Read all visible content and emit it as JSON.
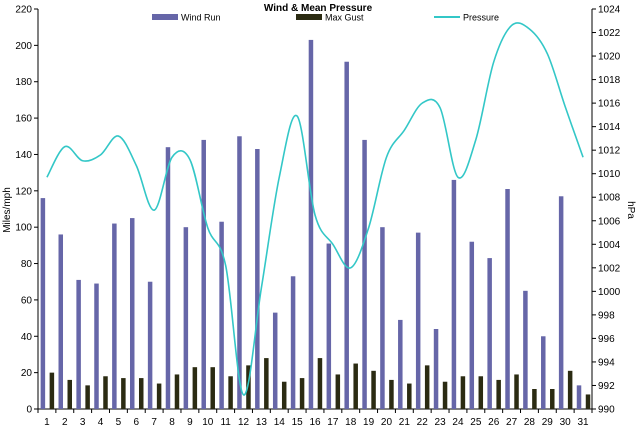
{
  "chart_data": {
    "type": "bar-line",
    "title": "Wind & Mean Pressure",
    "ylabel_left": "Miles/mph",
    "ylabel_right": "hPa",
    "categories": [
      "1",
      "2",
      "3",
      "4",
      "5",
      "6",
      "7",
      "8",
      "9",
      "10",
      "11",
      "12",
      "13",
      "14",
      "15",
      "16",
      "17",
      "18",
      "19",
      "20",
      "21",
      "22",
      "23",
      "24",
      "25",
      "26",
      "27",
      "28",
      "29",
      "30",
      "31"
    ],
    "ylim_left": [
      0,
      220
    ],
    "yticks_left": [
      0,
      20,
      40,
      60,
      80,
      100,
      120,
      140,
      160,
      180,
      200,
      220
    ],
    "ylim_right": [
      990,
      1024
    ],
    "yticks_right": [
      990,
      992,
      994,
      996,
      998,
      1000,
      1002,
      1004,
      1006,
      1008,
      1010,
      1012,
      1014,
      1016,
      1018,
      1020,
      1022,
      1024
    ],
    "legend_position": "top",
    "series": [
      {
        "name": "Wind Run",
        "kind": "bar",
        "axis": "left",
        "color": "#6666a8",
        "values": [
          116,
          96,
          71,
          69,
          102,
          105,
          70,
          144,
          100,
          148,
          103,
          150,
          143,
          53,
          73,
          203,
          91,
          191,
          148,
          100,
          49,
          97,
          44,
          126,
          92,
          83,
          121,
          65,
          40,
          117,
          13
        ]
      },
      {
        "name": "Max Gust",
        "kind": "bar",
        "axis": "left",
        "color": "#2b2b12",
        "values": [
          20,
          16,
          13,
          18,
          17,
          17,
          14,
          19,
          23,
          23,
          18,
          24,
          28,
          15,
          17,
          28,
          19,
          25,
          21,
          16,
          14,
          24,
          15,
          18,
          18,
          16,
          19,
          11,
          11,
          21,
          8
        ]
      },
      {
        "name": "Pressure",
        "kind": "line",
        "axis": "right",
        "color": "#33c7c7",
        "values": [
          1009.7,
          1012.3,
          1011.1,
          1011.6,
          1013.2,
          1010.7,
          1006.9,
          1011.4,
          1011.2,
          1005.4,
          1002.2,
          991.2,
          1000.3,
          1009.7,
          1014.9,
          1006.5,
          1004.0,
          1002.0,
          1005.4,
          1011.4,
          1013.7,
          1016.0,
          1015.6,
          1009.7,
          1012.9,
          1019.5,
          1022.6,
          1022.3,
          1020.2,
          1015.7,
          1011.4
        ]
      }
    ]
  }
}
